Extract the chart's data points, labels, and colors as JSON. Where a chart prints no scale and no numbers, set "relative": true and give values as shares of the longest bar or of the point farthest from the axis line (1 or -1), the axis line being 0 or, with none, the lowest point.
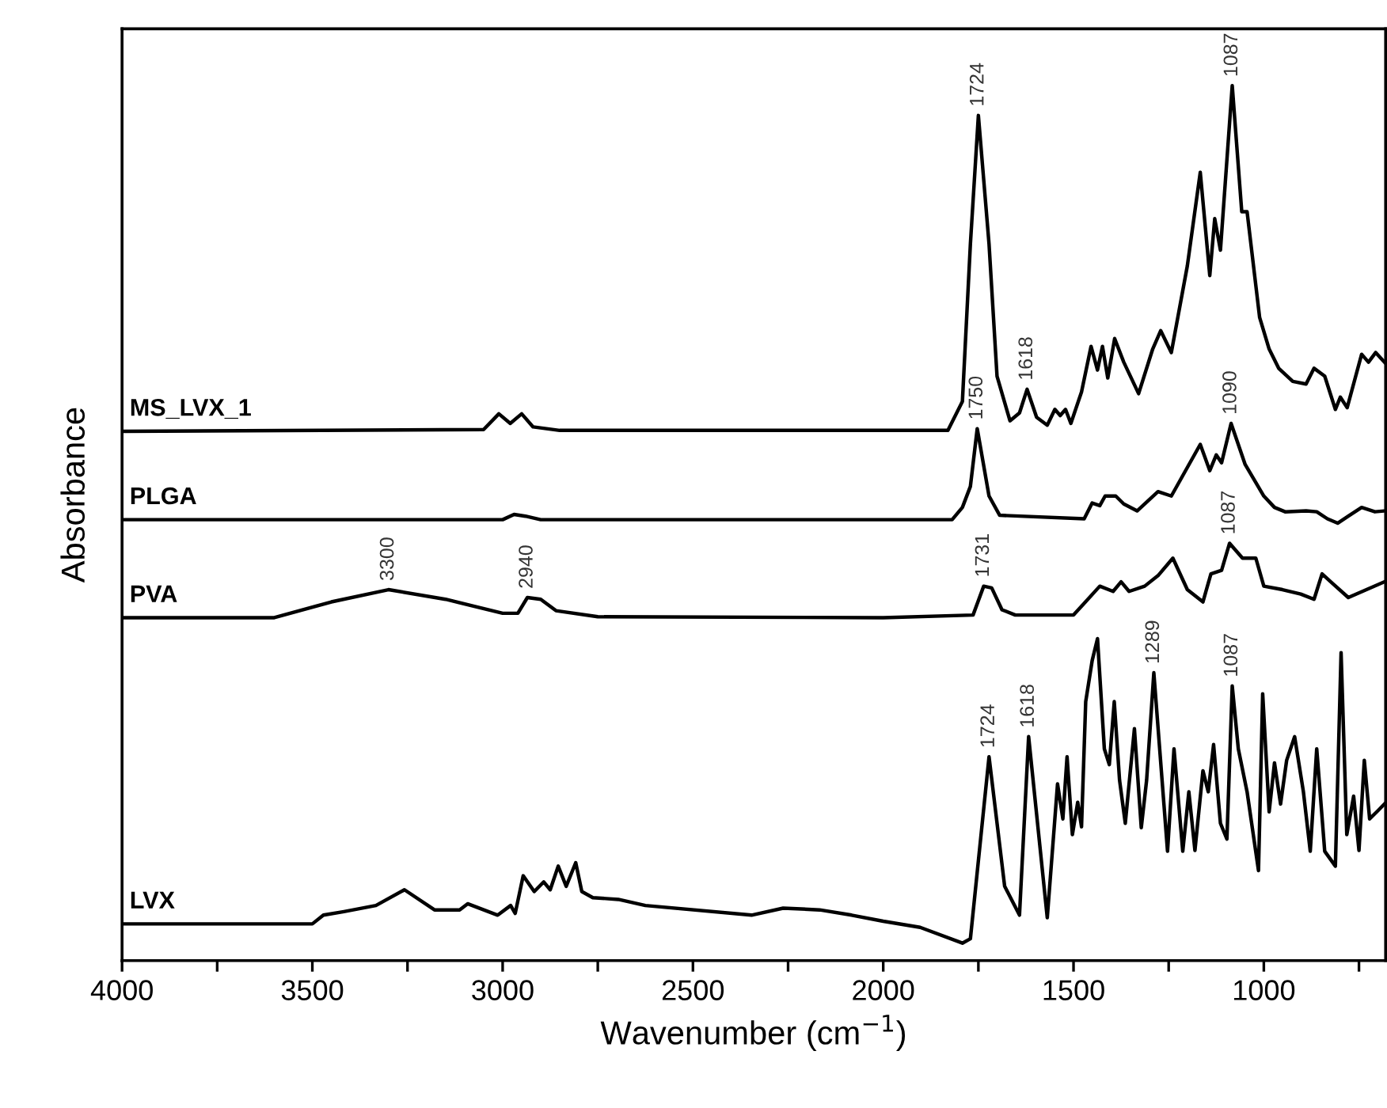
{
  "chart_data": {
    "type": "line",
    "relative": true,
    "xlabel": "Wavenumber (cm$^{−1}$)",
    "ylabel": "Absorbance",
    "xlim": [
      4000,
      680
    ],
    "xticks": [
      4000,
      {
        "value": 3750,
        "label": null
      },
      3500,
      {
        "value": 3250,
        "label": null
      },
      3000,
      {
        "value": 2750,
        "label": null
      },
      2500,
      {
        "value": 2250,
        "label": null
      },
      2000,
      {
        "value": 1750,
        "label": null
      },
      1500,
      {
        "value": 1250,
        "label": null
      },
      1000,
      {
        "value": 750,
        "label": null
      }
    ],
    "legend": false,
    "grid": false,
    "marker": "none",
    "line_style": "solid",
    "series": [
      {
        "name": "MS_LVX_1",
        "color": "#000000",
        "x": [
          4000,
          3050,
          3010,
          2980,
          2950,
          2920,
          2850,
          1830,
          1792,
          1771,
          1750,
          1722,
          1701,
          1667,
          1642,
          1622,
          1597,
          1569,
          1549,
          1535,
          1521,
          1507,
          1479,
          1454,
          1437,
          1424,
          1410,
          1392,
          1368,
          1329,
          1292,
          1271,
          1243,
          1201,
          1167,
          1142,
          1129,
          1114,
          1083,
          1058,
          1044,
          1011,
          986,
          961,
          924,
          889,
          868,
          840,
          812,
          799,
          781,
          743,
          725,
          706,
          683
        ],
        "values": [
          0.605,
          0.607,
          0.625,
          0.614,
          0.625,
          0.61,
          0.606,
          0.606,
          0.639,
          0.819,
          0.966,
          0.819,
          0.668,
          0.617,
          0.626,
          0.653,
          0.621,
          0.612,
          0.63,
          0.623,
          0.63,
          0.614,
          0.65,
          0.702,
          0.675,
          0.702,
          0.666,
          0.711,
          0.684,
          0.648,
          0.699,
          0.72,
          0.695,
          0.794,
          0.901,
          0.783,
          0.848,
          0.812,
          1.0,
          0.856,
          0.856,
          0.735,
          0.699,
          0.677,
          0.662,
          0.659,
          0.677,
          0.668,
          0.63,
          0.644,
          0.632,
          0.693,
          0.684,
          0.695,
          0.684
        ]
      },
      {
        "name": "PLGA",
        "color": "#000000",
        "x": [
          4000,
          3000,
          2970,
          2940,
          2900,
          1830,
          1819,
          1792,
          1771,
          1753,
          1722,
          1694,
          1472,
          1451,
          1431,
          1417,
          1389,
          1368,
          1333,
          1278,
          1243,
          1167,
          1142,
          1125,
          1111,
          1086,
          1049,
          1000,
          972,
          944,
          889,
          861,
          833,
          806,
          778,
          743,
          708,
          683
        ],
        "values": [
          0.504,
          0.504,
          0.51,
          0.508,
          0.504,
          0.504,
          0.504,
          0.518,
          0.542,
          0.608,
          0.531,
          0.509,
          0.505,
          0.523,
          0.52,
          0.531,
          0.531,
          0.522,
          0.514,
          0.536,
          0.531,
          0.59,
          0.56,
          0.578,
          0.569,
          0.614,
          0.567,
          0.531,
          0.518,
          0.513,
          0.514,
          0.513,
          0.505,
          0.5,
          0.508,
          0.518,
          0.513,
          0.514
        ]
      },
      {
        "name": "PVA",
        "color": "#000000",
        "x": [
          4000,
          3600,
          3450,
          3300,
          3150,
          3000,
          2960,
          2935,
          2900,
          2860,
          2750,
          2000,
          1764,
          1736,
          1715,
          1688,
          1653,
          1500,
          1431,
          1396,
          1375,
          1354,
          1313,
          1278,
          1239,
          1201,
          1160,
          1139,
          1111,
          1090,
          1056,
          1021,
          1000,
          951,
          903,
          868,
          847,
          819,
          778,
          683
        ],
        "values": [
          0.392,
          0.392,
          0.41,
          0.424,
          0.413,
          0.397,
          0.397,
          0.415,
          0.413,
          0.4,
          0.393,
          0.392,
          0.395,
          0.428,
          0.426,
          0.401,
          0.395,
          0.395,
          0.428,
          0.422,
          0.433,
          0.422,
          0.428,
          0.44,
          0.46,
          0.424,
          0.41,
          0.442,
          0.446,
          0.477,
          0.46,
          0.46,
          0.428,
          0.424,
          0.419,
          0.413,
          0.442,
          0.431,
          0.415,
          0.433
        ]
      },
      {
        "name": "LVX",
        "color": "#000000",
        "x": [
          4000,
          3500,
          3471,
          3417,
          3333,
          3258,
          3179,
          3113,
          3092,
          3013,
          2979,
          2967,
          2946,
          2917,
          2892,
          2875,
          2854,
          2833,
          2808,
          2792,
          2763,
          2696,
          2625,
          2346,
          2263,
          2167,
          2083,
          2000,
          1903,
          1792,
          1771,
          1722,
          1681,
          1642,
          1618,
          1569,
          1542,
          1528,
          1517,
          1503,
          1489,
          1479,
          1468,
          1451,
          1437,
          1419,
          1406,
          1393,
          1379,
          1364,
          1340,
          1322,
          1308,
          1289,
          1253,
          1236,
          1213,
          1197,
          1181,
          1160,
          1146,
          1132,
          1114,
          1097,
          1083,
          1067,
          1044,
          1014,
          1003,
          986,
          972,
          956,
          940,
          919,
          896,
          878,
          861,
          840,
          812,
          797,
          782,
          764,
          750,
          736,
          722,
          701,
          683
        ],
        "values": [
          0.042,
          0.042,
          0.052,
          0.056,
          0.063,
          0.081,
          0.058,
          0.058,
          0.065,
          0.052,
          0.063,
          0.054,
          0.097,
          0.079,
          0.09,
          0.081,
          0.108,
          0.085,
          0.112,
          0.079,
          0.072,
          0.07,
          0.063,
          0.052,
          0.06,
          0.058,
          0.052,
          0.045,
          0.038,
          0.02,
          0.025,
          0.233,
          0.085,
          0.052,
          0.256,
          0.049,
          0.202,
          0.162,
          0.233,
          0.144,
          0.181,
          0.153,
          0.296,
          0.343,
          0.368,
          0.242,
          0.224,
          0.296,
          0.206,
          0.157,
          0.265,
          0.152,
          0.206,
          0.329,
          0.125,
          0.242,
          0.125,
          0.193,
          0.126,
          0.217,
          0.193,
          0.247,
          0.157,
          0.139,
          0.314,
          0.242,
          0.193,
          0.103,
          0.305,
          0.17,
          0.226,
          0.179,
          0.229,
          0.256,
          0.193,
          0.125,
          0.242,
          0.125,
          0.108,
          0.352,
          0.144,
          0.188,
          0.126,
          0.229,
          0.162,
          0.171,
          0.179
        ]
      }
    ],
    "annotations": [
      {
        "text": "1724",
        "x": 1750,
        "y": 0.966
      },
      {
        "text": "1618",
        "x": 1622,
        "y": 0.653
      },
      {
        "text": "1087",
        "x": 1083,
        "y": 1.0
      },
      {
        "text": "1750",
        "x": 1753,
        "y": 0.608
      },
      {
        "text": "1090",
        "x": 1086,
        "y": 0.614
      },
      {
        "text": "3300",
        "x": 3300,
        "y": 0.424
      },
      {
        "text": "2940",
        "x": 2935,
        "y": 0.415
      },
      {
        "text": "1731",
        "x": 1736,
        "y": 0.428
      },
      {
        "text": "1087",
        "x": 1090,
        "y": 0.477
      },
      {
        "text": "1724",
        "x": 1722,
        "y": 0.233
      },
      {
        "text": "1618",
        "x": 1618,
        "y": 0.256
      },
      {
        "text": "1289",
        "x": 1289,
        "y": 0.329
      },
      {
        "text": "1087",
        "x": 1083,
        "y": 0.314
      }
    ]
  }
}
